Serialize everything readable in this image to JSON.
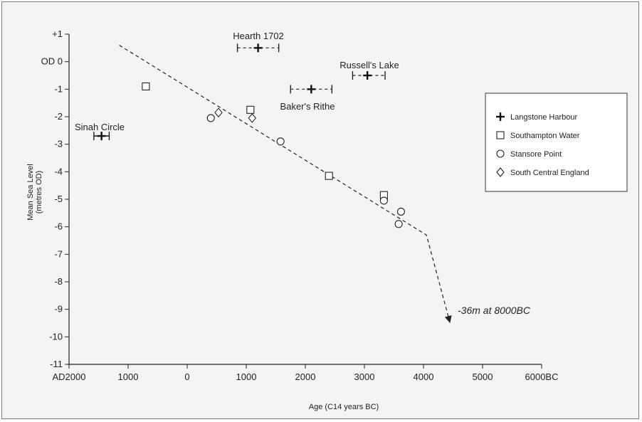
{
  "chart_data": {
    "type": "scatter",
    "xlabel": "Age (C14 years BC)",
    "ylabel_line1": "Mean Sea Level",
    "ylabel_line2": "(metres OD)",
    "xlim": [
      -2000,
      6000
    ],
    "ylim": [
      -11,
      1
    ],
    "x_ticks": [
      {
        "value": -2000,
        "label": "AD2000"
      },
      {
        "value": -1000,
        "label": "1000"
      },
      {
        "value": 0,
        "label": "0"
      },
      {
        "value": 1000,
        "label": "1000"
      },
      {
        "value": 2000,
        "label": "2000"
      },
      {
        "value": 3000,
        "label": "3000"
      },
      {
        "value": 4000,
        "label": "4000"
      },
      {
        "value": 5000,
        "label": "5000"
      },
      {
        "value": 6000,
        "label": "6000BC"
      }
    ],
    "y_ticks": [
      {
        "value": 1,
        "label": "+1"
      },
      {
        "value": 0,
        "label": "OD  0"
      },
      {
        "value": -1,
        "label": "-1"
      },
      {
        "value": -2,
        "label": "-2"
      },
      {
        "value": -3,
        "label": "-3"
      },
      {
        "value": -4,
        "label": "-4"
      },
      {
        "value": -5,
        "label": "-5"
      },
      {
        "value": -6,
        "label": "-6"
      },
      {
        "value": -7,
        "label": "-7"
      },
      {
        "value": -8,
        "label": "-8"
      },
      {
        "value": -9,
        "label": "-9"
      },
      {
        "value": -10,
        "label": "-10"
      },
      {
        "value": -11,
        "label": "-11"
      }
    ],
    "series": [
      {
        "name": "Langstone Harbour",
        "marker": "plus",
        "points": [
          {
            "x": -1450,
            "y": -2.7,
            "err_lo": -1580,
            "err_hi": -1320,
            "solid": true,
            "label": "Sinah Circle"
          },
          {
            "x": 1200,
            "y": 0.5,
            "err_lo": 850,
            "err_hi": 1550,
            "solid": false,
            "label": "Hearth 1702"
          },
          {
            "x": 2100,
            "y": -1.0,
            "err_lo": 1750,
            "err_hi": 2450,
            "solid": false,
            "label": "Baker's Rithe"
          },
          {
            "x": 3050,
            "y": -0.5,
            "err_lo": 2800,
            "err_hi": 3350,
            "solid": false,
            "label": "Russell's Lake"
          }
        ]
      },
      {
        "name": "Southampton Water",
        "marker": "square",
        "points": [
          {
            "x": -700,
            "y": -0.9
          },
          {
            "x": 1070,
            "y": -1.75
          },
          {
            "x": 2400,
            "y": -4.15
          },
          {
            "x": 3330,
            "y": -4.85
          }
        ]
      },
      {
        "name": "Stansore Point",
        "marker": "circle",
        "points": [
          {
            "x": 400,
            "y": -2.05
          },
          {
            "x": 1580,
            "y": -2.9
          },
          {
            "x": 3330,
            "y": -5.05
          },
          {
            "x": 3620,
            "y": -5.45
          },
          {
            "x": 3580,
            "y": -5.9
          }
        ]
      },
      {
        "name": "South Central England",
        "marker": "diamond",
        "points": [
          {
            "x": 530,
            "y": -1.85
          },
          {
            "x": 1100,
            "y": -2.05
          }
        ]
      }
    ],
    "trend_line": [
      {
        "x": -1150,
        "y": 0.6
      },
      {
        "x": 4050,
        "y": -6.3
      },
      {
        "x": 4450,
        "y": -9.5
      }
    ],
    "annotations": {
      "sinah": "Sinah Circle",
      "hearth": "Hearth 1702",
      "bakers": "Baker's Rithe",
      "russells": "Russell's Lake",
      "arrow_note": "-36m at 8000BC"
    },
    "legend": {
      "placement": "right",
      "entries": [
        {
          "marker": "plus",
          "label": "Langstone Harbour"
        },
        {
          "marker": "square",
          "label": "Southampton Water"
        },
        {
          "marker": "circle",
          "label": "Stansore Point"
        },
        {
          "marker": "diamond",
          "label": "South Central England"
        }
      ]
    },
    "grid": false
  }
}
